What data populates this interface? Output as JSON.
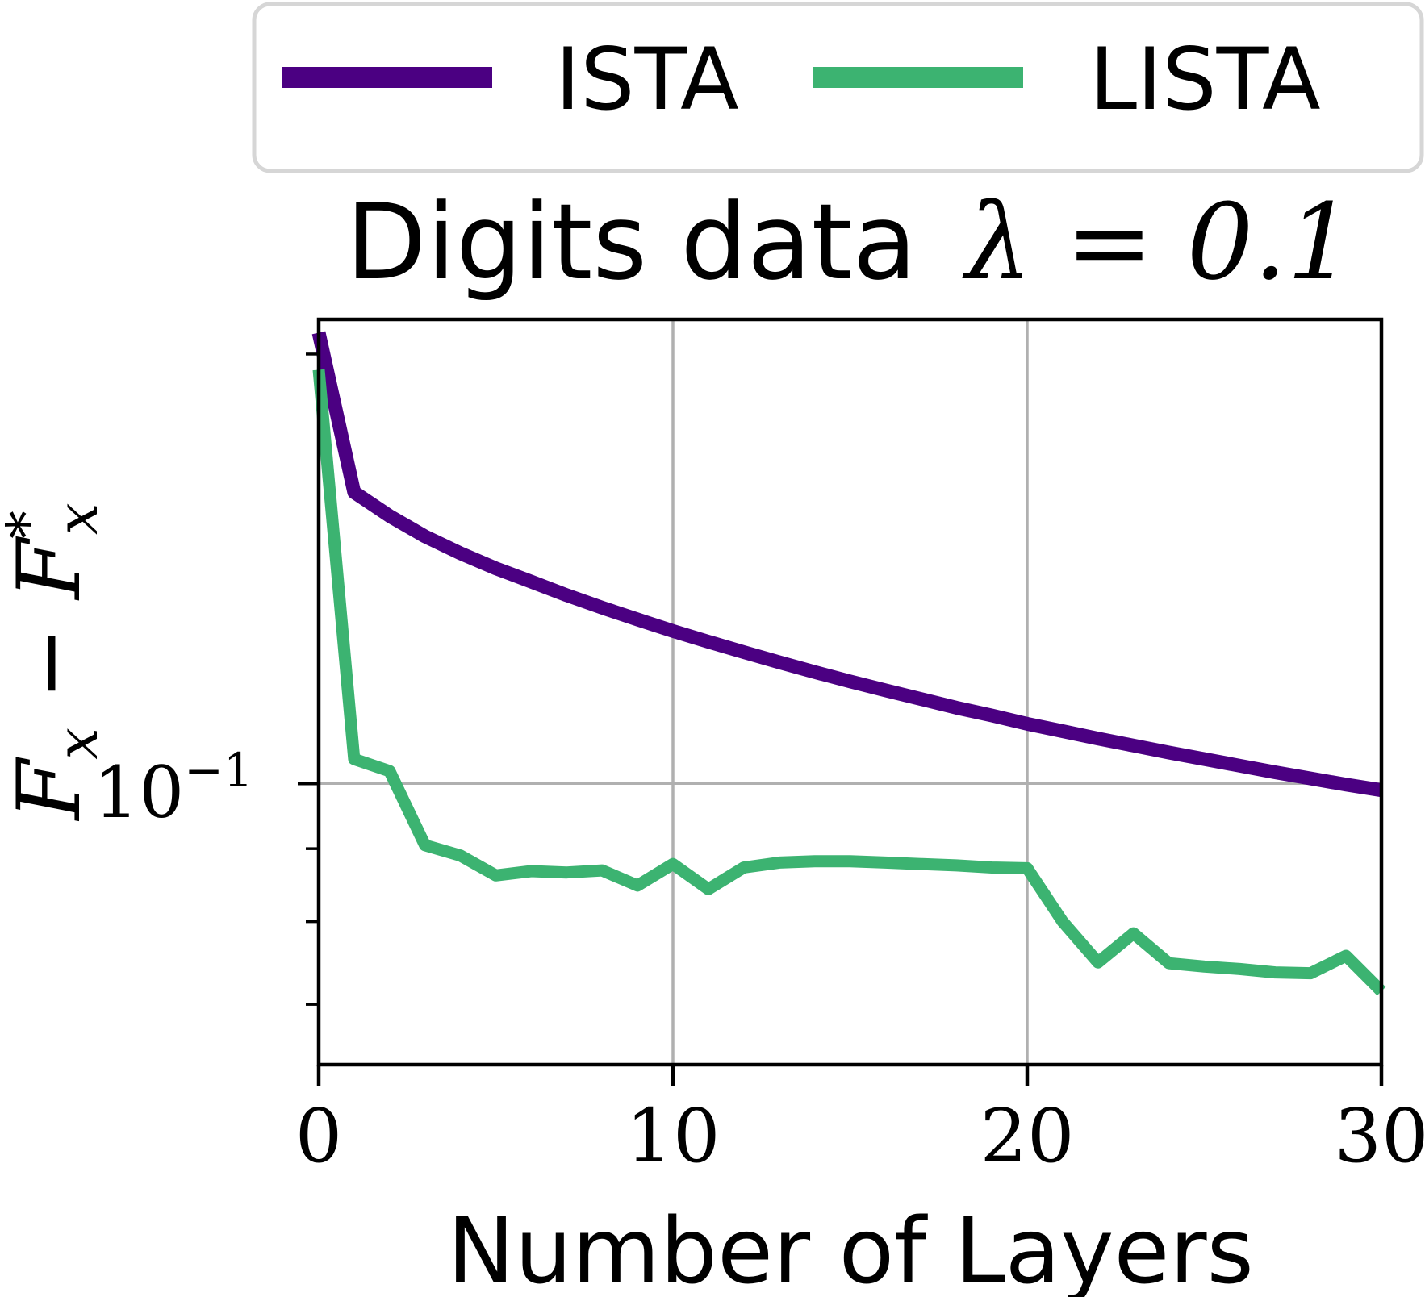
{
  "chart_data": {
    "type": "line",
    "title": "Digits data λ = 0.1",
    "title_main": "Digits data",
    "title_math": "λ = 0.1",
    "xlabel": "Number of Layers",
    "ylabel": "F_x − F*_x",
    "ylabel_main": "F",
    "ylabel_sub": "x",
    "ylabel_minus": " − F",
    "ylabel_sup": "*",
    "yscale": "log",
    "xlim": [
      0,
      30
    ],
    "ylim": [
      0.0635,
      0.2115
    ],
    "xticks": [
      0,
      10,
      20,
      30
    ],
    "xtick_labels": [
      "0",
      "10",
      "20",
      "30"
    ],
    "ytick_major": [
      0.1
    ],
    "ytick_major_base": "10",
    "ytick_major_exp": "−1",
    "ytick_minor": [
      0.07,
      0.08,
      0.09,
      0.2
    ],
    "grid": true,
    "legend_position": "top, above plot",
    "series": [
      {
        "name": "ISTA",
        "color": "#4b0082",
        "x": [
          0,
          1,
          2,
          3,
          4,
          5,
          6,
          7,
          8,
          9,
          10,
          11,
          12,
          13,
          14,
          15,
          16,
          17,
          18,
          19,
          20,
          21,
          22,
          23,
          24,
          25,
          26,
          27,
          28,
          29,
          30
        ],
        "y": [
          0.207,
          0.16,
          0.154,
          0.149,
          0.145,
          0.1415,
          0.1385,
          0.1355,
          0.1328,
          0.1303,
          0.1279,
          0.1257,
          0.1236,
          0.1216,
          0.1197,
          0.1179,
          0.1162,
          0.1146,
          0.113,
          0.1116,
          0.1101,
          0.1088,
          0.1075,
          0.1063,
          0.1051,
          0.104,
          0.1029,
          0.1018,
          0.1008,
          0.0998,
          0.0989
        ]
      },
      {
        "name": "LISTA",
        "color": "#3cb371",
        "x": [
          0,
          1,
          2,
          3,
          4,
          5,
          6,
          7,
          8,
          9,
          10,
          11,
          12,
          13,
          14,
          15,
          16,
          17,
          18,
          19,
          20,
          21,
          22,
          23,
          24,
          25,
          26,
          27,
          28,
          29,
          30
        ],
        "y": [
          0.195,
          0.104,
          0.102,
          0.0905,
          0.089,
          0.0862,
          0.0868,
          0.0866,
          0.0869,
          0.0848,
          0.0878,
          0.0843,
          0.0873,
          0.088,
          0.0882,
          0.0882,
          0.088,
          0.0878,
          0.0876,
          0.0873,
          0.0872,
          0.08,
          0.0749,
          0.0785,
          0.0748,
          0.0744,
          0.0741,
          0.0737,
          0.0736,
          0.0757,
          0.0715
        ]
      }
    ]
  }
}
